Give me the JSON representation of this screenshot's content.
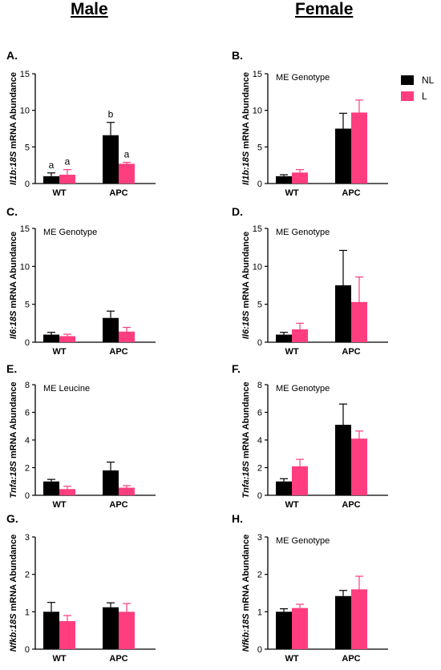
{
  "headers": {
    "male": "Male",
    "female": "Female"
  },
  "legend": [
    {
      "label": "NL",
      "color": "#000000"
    },
    {
      "label": "L",
      "color": "#ff3d7f"
    }
  ],
  "chart_data": [
    {
      "id": "A",
      "panel_label": "A.",
      "type": "bar",
      "categories": [
        "WT",
        "APC"
      ],
      "series": [
        {
          "name": "NL",
          "values": [
            1.0,
            6.6
          ],
          "errors": [
            0.45,
            1.75
          ]
        },
        {
          "name": "L",
          "values": [
            1.2,
            2.7
          ],
          "errors": [
            0.7,
            0.2
          ]
        }
      ],
      "ylabel_gene": "Il1b:18S",
      "ylabel_rest": " mRNA Abundance",
      "ylim": [
        0,
        15
      ],
      "yticks": [
        0,
        5,
        10,
        15
      ],
      "annotation": "",
      "sig_letters": [
        [
          "a",
          "a"
        ],
        [
          "b",
          "a"
        ]
      ]
    },
    {
      "id": "B",
      "panel_label": "B.",
      "type": "bar",
      "categories": [
        "WT",
        "APC"
      ],
      "series": [
        {
          "name": "NL",
          "values": [
            1.0,
            7.5
          ],
          "errors": [
            0.2,
            2.1
          ]
        },
        {
          "name": "L",
          "values": [
            1.5,
            9.7
          ],
          "errors": [
            0.4,
            1.7
          ]
        }
      ],
      "ylabel_gene": "Il1b:18S",
      "ylabel_rest": " mRNA Abundance",
      "ylim": [
        0,
        15
      ],
      "yticks": [
        0,
        5,
        10,
        15
      ],
      "annotation": "ME Genotype"
    },
    {
      "id": "C",
      "panel_label": "C.",
      "type": "bar",
      "categories": [
        "WT",
        "APC"
      ],
      "series": [
        {
          "name": "NL",
          "values": [
            1.0,
            3.2
          ],
          "errors": [
            0.3,
            0.9
          ]
        },
        {
          "name": "L",
          "values": [
            0.8,
            1.4
          ],
          "errors": [
            0.25,
            0.55
          ]
        }
      ],
      "ylabel_gene": "Il6:18S",
      "ylabel_rest": " mRNA Abundance",
      "ylim": [
        0,
        15
      ],
      "yticks": [
        0,
        5,
        10,
        15
      ],
      "annotation": "ME Genotype"
    },
    {
      "id": "D",
      "panel_label": "D.",
      "type": "bar",
      "categories": [
        "WT",
        "APC"
      ],
      "series": [
        {
          "name": "NL",
          "values": [
            1.0,
            7.5
          ],
          "errors": [
            0.3,
            4.6
          ]
        },
        {
          "name": "L",
          "values": [
            1.7,
            5.3
          ],
          "errors": [
            0.8,
            3.3
          ]
        }
      ],
      "ylabel_gene": "Il6:18S",
      "ylabel_rest": " mRNA Abundance",
      "ylim": [
        0,
        15
      ],
      "yticks": [
        0,
        5,
        10,
        15
      ],
      "annotation": "ME Genotype"
    },
    {
      "id": "E",
      "panel_label": "E.",
      "type": "bar",
      "categories": [
        "WT",
        "APC"
      ],
      "series": [
        {
          "name": "NL",
          "values": [
            1.0,
            1.8
          ],
          "errors": [
            0.15,
            0.6
          ]
        },
        {
          "name": "L",
          "values": [
            0.45,
            0.55
          ],
          "errors": [
            0.2,
            0.15
          ]
        }
      ],
      "ylabel_gene": "Tnfa:18S",
      "ylabel_rest": " mRNA Abundance",
      "ylim": [
        0,
        8
      ],
      "yticks": [
        0,
        2,
        4,
        6,
        8
      ],
      "annotation": "ME Leucine"
    },
    {
      "id": "F",
      "panel_label": "F.",
      "type": "bar",
      "categories": [
        "WT",
        "APC"
      ],
      "series": [
        {
          "name": "NL",
          "values": [
            1.0,
            5.1
          ],
          "errors": [
            0.2,
            1.5
          ]
        },
        {
          "name": "L",
          "values": [
            2.1,
            4.1
          ],
          "errors": [
            0.5,
            0.55
          ]
        }
      ],
      "ylabel_gene": "Tnfa:18S",
      "ylabel_rest": " mRNA Abundance",
      "ylim": [
        0,
        8
      ],
      "yticks": [
        0,
        2,
        4,
        6,
        8
      ],
      "annotation": "ME Genotype"
    },
    {
      "id": "G",
      "panel_label": "G.",
      "type": "bar",
      "categories": [
        "WT",
        "APC"
      ],
      "series": [
        {
          "name": "NL",
          "values": [
            1.0,
            1.12
          ],
          "errors": [
            0.25,
            0.12
          ]
        },
        {
          "name": "L",
          "values": [
            0.75,
            1.0
          ],
          "errors": [
            0.15,
            0.22
          ]
        }
      ],
      "ylabel_gene": "Nfkb:18S",
      "ylabel_rest": " mRNA Abundance",
      "ylim": [
        0,
        3
      ],
      "yticks": [
        0,
        1,
        2,
        3
      ],
      "annotation": ""
    },
    {
      "id": "H",
      "panel_label": "H.",
      "type": "bar",
      "categories": [
        "WT",
        "APC"
      ],
      "series": [
        {
          "name": "NL",
          "values": [
            1.0,
            1.42
          ],
          "errors": [
            0.08,
            0.15
          ]
        },
        {
          "name": "L",
          "values": [
            1.1,
            1.6
          ],
          "errors": [
            0.1,
            0.35
          ]
        }
      ],
      "ylabel_gene": "Nfkb:18S",
      "ylabel_rest": " mRNA Abundance",
      "ylim": [
        0,
        3
      ],
      "yticks": [
        0,
        1,
        2,
        3
      ],
      "annotation": "ME Genotype"
    }
  ]
}
